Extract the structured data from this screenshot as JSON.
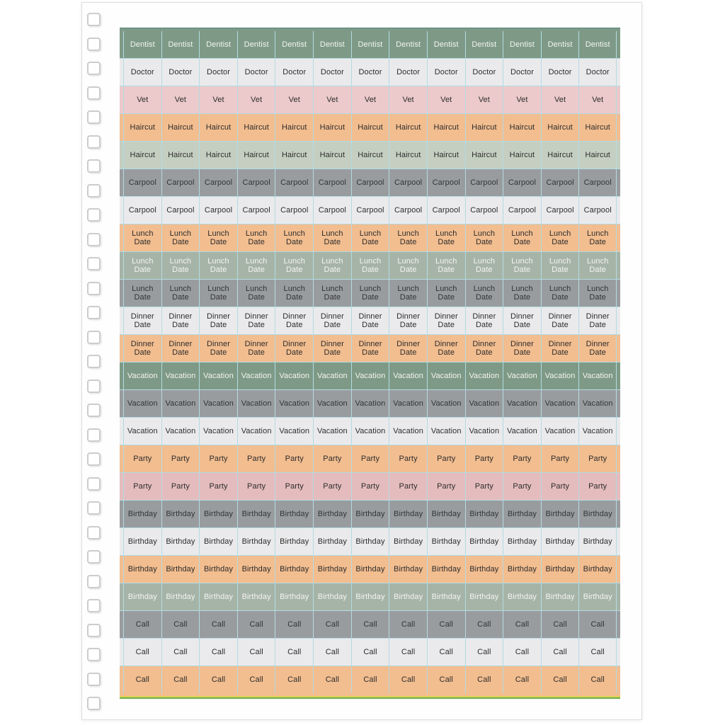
{
  "page": {
    "background": "#fefefe",
    "outer_background": "#ffffff",
    "border_color": "#dedede"
  },
  "binder": {
    "hole_count": 29,
    "hole_border_color": "#cccccc",
    "hole_fill_color": "#ffffff"
  },
  "palette": {
    "green": {
      "bg": "#7e9a86",
      "text": "#f4f4f0"
    },
    "lightgray": {
      "bg": "#eaeaec",
      "text": "#2d2d2d"
    },
    "pink": {
      "bg": "#eccacb",
      "text": "#2d2d2d"
    },
    "peach": {
      "bg": "#f2bd8f",
      "text": "#2d2d2d"
    },
    "palesage": {
      "bg": "#c5cfc1",
      "text": "#2d2d2d"
    },
    "gray": {
      "bg": "#999c9f",
      "text": "#333333"
    },
    "graygreen": {
      "bg": "#a6b4a7",
      "text": "#f4f4f0"
    },
    "pink2": {
      "bg": "#e5bcbd",
      "text": "#2d2d2d"
    }
  },
  "sheet": {
    "columns": 13,
    "cut_line_color": "#b3dbe3",
    "top_edge_color": "#4e8577",
    "bottom_edge_colors": [
      "#dcd258",
      "#6fae49"
    ],
    "rows": [
      {
        "label": "Dentist",
        "palette": "green"
      },
      {
        "label": "Doctor",
        "palette": "lightgray"
      },
      {
        "label": "Vet",
        "palette": "pink"
      },
      {
        "label": "Haircut",
        "palette": "peach"
      },
      {
        "label": "Haircut",
        "palette": "palesage"
      },
      {
        "label": "Carpool",
        "palette": "gray"
      },
      {
        "label": "Carpool",
        "palette": "lightgray"
      },
      {
        "label": "Lunch Date",
        "palette": "peach"
      },
      {
        "label": "Lunch Date",
        "palette": "graygreen"
      },
      {
        "label": "Lunch Date",
        "palette": "gray"
      },
      {
        "label": "Dinner Date",
        "palette": "lightgray"
      },
      {
        "label": "Dinner Date",
        "palette": "peach"
      },
      {
        "label": "Vacation",
        "palette": "green"
      },
      {
        "label": "Vacation",
        "palette": "gray"
      },
      {
        "label": "Vacation",
        "palette": "lightgray"
      },
      {
        "label": "Party",
        "palette": "peach"
      },
      {
        "label": "Party",
        "palette": "pink2"
      },
      {
        "label": "Birthday",
        "palette": "gray"
      },
      {
        "label": "Birthday",
        "palette": "lightgray"
      },
      {
        "label": "Birthday",
        "palette": "peach"
      },
      {
        "label": "Birthday",
        "palette": "graygreen"
      },
      {
        "label": "Call",
        "palette": "gray"
      },
      {
        "label": "Call",
        "palette": "lightgray"
      },
      {
        "label": "Call",
        "palette": "peach"
      }
    ]
  }
}
